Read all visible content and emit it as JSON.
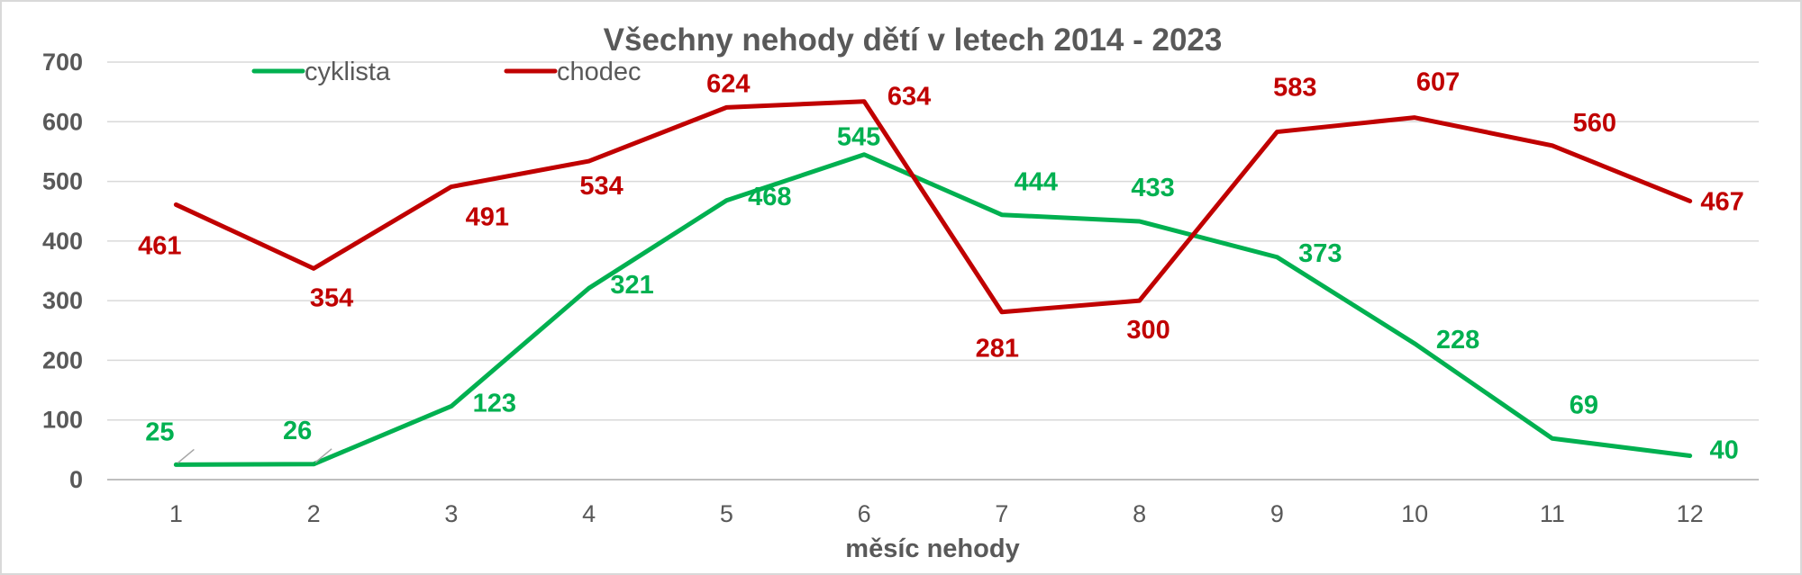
{
  "chart_data": {
    "type": "line",
    "title": "Všechny nehody dětí v letech 2014 - 2023",
    "xlabel": "měsíc nehody",
    "ylabel": "",
    "categories": [
      "1",
      "2",
      "3",
      "4",
      "5",
      "6",
      "7",
      "8",
      "9",
      "10",
      "11",
      "12"
    ],
    "ylim": [
      0,
      700
    ],
    "yticks": [
      "0",
      "100",
      "200",
      "300",
      "400",
      "500",
      "600",
      "700"
    ],
    "grid": true,
    "legend_position": "top-left",
    "series": [
      {
        "name": "cyklista",
        "color": "#00b050",
        "values": [
          25,
          26,
          123,
          321,
          468,
          545,
          444,
          433,
          373,
          228,
          69,
          40
        ]
      },
      {
        "name": "chodec",
        "color": "#c00000",
        "values": [
          461,
          354,
          491,
          534,
          624,
          634,
          281,
          300,
          583,
          607,
          560,
          467
        ]
      }
    ]
  }
}
